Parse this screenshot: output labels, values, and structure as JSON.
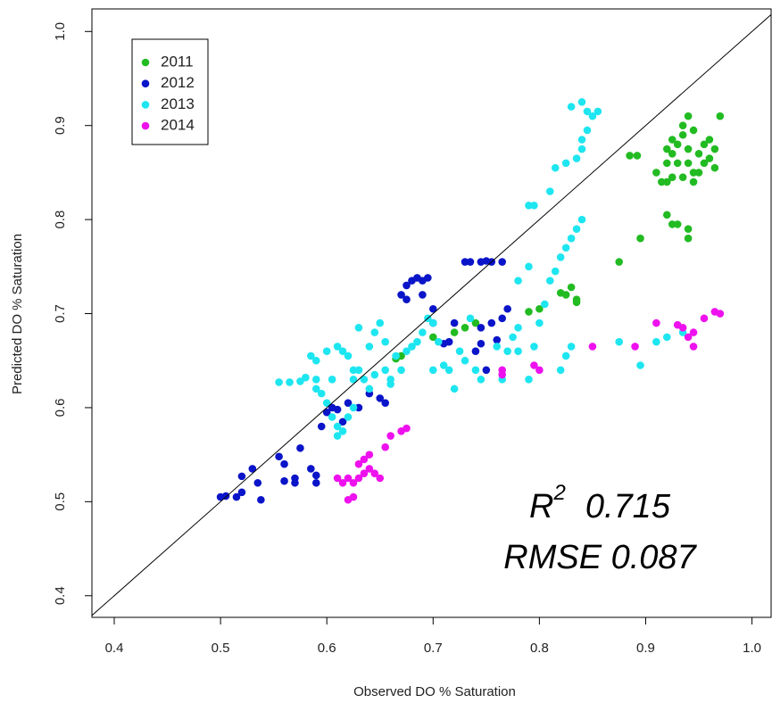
{
  "chart_data": {
    "type": "scatter",
    "xlabel": "Observed DO % Saturation",
    "ylabel": "Predicted DO % Saturation",
    "xlim": [
      0.379,
      1.018
    ],
    "ylim": [
      0.377,
      1.024
    ],
    "xticks": [
      0.4,
      0.5,
      0.6,
      0.7,
      0.8,
      0.9,
      {
        "value": 1,
        "label": "1.0"
      }
    ],
    "yticks": [
      0.4,
      0.5,
      0.6,
      0.7,
      0.8,
      0.9,
      {
        "value": 1,
        "label": "1.0"
      }
    ],
    "diagonal": true,
    "legend": "top-left",
    "annotations": [
      {
        "base": "R",
        "sup": "2",
        "text": "0.715"
      },
      {
        "text": "RMSE 0.087"
      }
    ],
    "series": [
      {
        "name": "2011",
        "color": "#22bb22",
        "x": [
          0.91,
          0.915,
          0.92,
          0.925,
          0.92,
          0.925,
          0.93,
          0.935,
          0.935,
          0.94,
          0.945,
          0.94,
          0.945,
          0.95,
          0.955,
          0.955,
          0.96,
          0.965,
          0.965,
          0.97,
          0.945,
          0.93,
          0.92,
          0.95,
          0.935,
          0.96,
          0.925,
          0.94,
          0.92,
          0.93,
          0.94,
          0.94,
          0.925,
          0.895,
          0.875,
          0.885,
          0.892,
          0.82,
          0.83,
          0.835,
          0.835,
          0.825,
          0.8,
          0.79,
          0.73,
          0.72,
          0.7,
          0.665,
          0.67,
          0.74
        ],
        "values": [
          0.85,
          0.84,
          0.84,
          0.845,
          0.86,
          0.87,
          0.88,
          0.89,
          0.9,
          0.91,
          0.895,
          0.86,
          0.85,
          0.87,
          0.88,
          0.86,
          0.865,
          0.875,
          0.855,
          0.91,
          0.84,
          0.86,
          0.875,
          0.85,
          0.845,
          0.885,
          0.885,
          0.875,
          0.805,
          0.795,
          0.79,
          0.78,
          0.795,
          0.78,
          0.755,
          0.868,
          0.868,
          0.722,
          0.728,
          0.715,
          0.712,
          0.72,
          0.705,
          0.702,
          0.685,
          0.68,
          0.675,
          0.652,
          0.655,
          0.69
        ]
      },
      {
        "name": "2012",
        "color": "#0a14c8",
        "x": [
          0.5,
          0.505,
          0.515,
          0.52,
          0.52,
          0.53,
          0.535,
          0.538,
          0.555,
          0.56,
          0.56,
          0.57,
          0.575,
          0.57,
          0.585,
          0.59,
          0.59,
          0.595,
          0.6,
          0.605,
          0.61,
          0.615,
          0.62,
          0.63,
          0.64,
          0.65,
          0.655,
          0.67,
          0.675,
          0.675,
          0.68,
          0.685,
          0.69,
          0.69,
          0.695,
          0.7,
          0.7,
          0.71,
          0.715,
          0.72,
          0.73,
          0.735,
          0.745,
          0.75,
          0.755,
          0.765,
          0.745,
          0.76,
          0.765,
          0.77,
          0.745,
          0.75,
          0.74,
          0.755
        ],
        "values": [
          0.505,
          0.506,
          0.505,
          0.51,
          0.527,
          0.535,
          0.52,
          0.502,
          0.548,
          0.54,
          0.522,
          0.525,
          0.557,
          0.52,
          0.535,
          0.528,
          0.52,
          0.58,
          0.595,
          0.6,
          0.598,
          0.585,
          0.605,
          0.6,
          0.615,
          0.61,
          0.605,
          0.72,
          0.73,
          0.715,
          0.735,
          0.738,
          0.735,
          0.72,
          0.738,
          0.705,
          0.69,
          0.668,
          0.67,
          0.69,
          0.755,
          0.755,
          0.755,
          0.756,
          0.755,
          0.755,
          0.668,
          0.672,
          0.695,
          0.705,
          0.685,
          0.64,
          0.66,
          0.69
        ]
      },
      {
        "name": "2013",
        "color": "#1ee6f0",
        "x": [
          0.555,
          0.565,
          0.575,
          0.58,
          0.585,
          0.59,
          0.59,
          0.595,
          0.6,
          0.605,
          0.61,
          0.61,
          0.615,
          0.62,
          0.625,
          0.61,
          0.615,
          0.62,
          0.625,
          0.625,
          0.63,
          0.63,
          0.635,
          0.64,
          0.645,
          0.64,
          0.645,
          0.65,
          0.655,
          0.66,
          0.66,
          0.665,
          0.67,
          0.675,
          0.68,
          0.685,
          0.69,
          0.695,
          0.7,
          0.705,
          0.71,
          0.715,
          0.72,
          0.725,
          0.73,
          0.74,
          0.745,
          0.76,
          0.77,
          0.775,
          0.78,
          0.78,
          0.79,
          0.795,
          0.8,
          0.805,
          0.81,
          0.815,
          0.82,
          0.825,
          0.83,
          0.835,
          0.84,
          0.82,
          0.825,
          0.83,
          0.79,
          0.795,
          0.81,
          0.815,
          0.825,
          0.835,
          0.84,
          0.84,
          0.845,
          0.85,
          0.83,
          0.84,
          0.845,
          0.855,
          0.875,
          0.895,
          0.91,
          0.92,
          0.935,
          0.765,
          0.7,
          0.735,
          0.78,
          0.79,
          0.655,
          0.6,
          0.59,
          0.605
        ],
        "values": [
          0.627,
          0.627,
          0.628,
          0.632,
          0.655,
          0.63,
          0.62,
          0.615,
          0.605,
          0.59,
          0.58,
          0.57,
          0.575,
          0.59,
          0.6,
          0.665,
          0.66,
          0.655,
          0.64,
          0.63,
          0.685,
          0.64,
          0.63,
          0.62,
          0.635,
          0.665,
          0.68,
          0.69,
          0.64,
          0.63,
          0.625,
          0.655,
          0.64,
          0.66,
          0.665,
          0.67,
          0.68,
          0.695,
          0.69,
          0.67,
          0.645,
          0.64,
          0.62,
          0.66,
          0.65,
          0.64,
          0.63,
          0.665,
          0.66,
          0.675,
          0.685,
          0.66,
          0.63,
          0.665,
          0.69,
          0.71,
          0.735,
          0.745,
          0.76,
          0.77,
          0.78,
          0.79,
          0.8,
          0.64,
          0.655,
          0.665,
          0.815,
          0.815,
          0.83,
          0.855,
          0.86,
          0.865,
          0.875,
          0.885,
          0.895,
          0.91,
          0.92,
          0.925,
          0.915,
          0.915,
          0.67,
          0.645,
          0.67,
          0.675,
          0.68,
          0.63,
          0.64,
          0.695,
          0.735,
          0.75,
          0.67,
          0.66,
          0.65,
          0.63
        ]
      },
      {
        "name": "2014",
        "color": "#ee11ee",
        "x": [
          0.61,
          0.615,
          0.62,
          0.62,
          0.625,
          0.625,
          0.63,
          0.63,
          0.635,
          0.635,
          0.64,
          0.64,
          0.645,
          0.65,
          0.655,
          0.66,
          0.67,
          0.675,
          0.765,
          0.765,
          0.795,
          0.8,
          0.85,
          0.89,
          0.91,
          0.93,
          0.935,
          0.94,
          0.945,
          0.945,
          0.955,
          0.965,
          0.97
        ],
        "values": [
          0.525,
          0.52,
          0.525,
          0.502,
          0.505,
          0.52,
          0.525,
          0.54,
          0.545,
          0.53,
          0.55,
          0.535,
          0.53,
          0.525,
          0.558,
          0.57,
          0.575,
          0.578,
          0.635,
          0.64,
          0.645,
          0.64,
          0.665,
          0.665,
          0.69,
          0.688,
          0.685,
          0.675,
          0.68,
          0.665,
          0.695,
          0.702,
          0.7
        ]
      }
    ]
  }
}
